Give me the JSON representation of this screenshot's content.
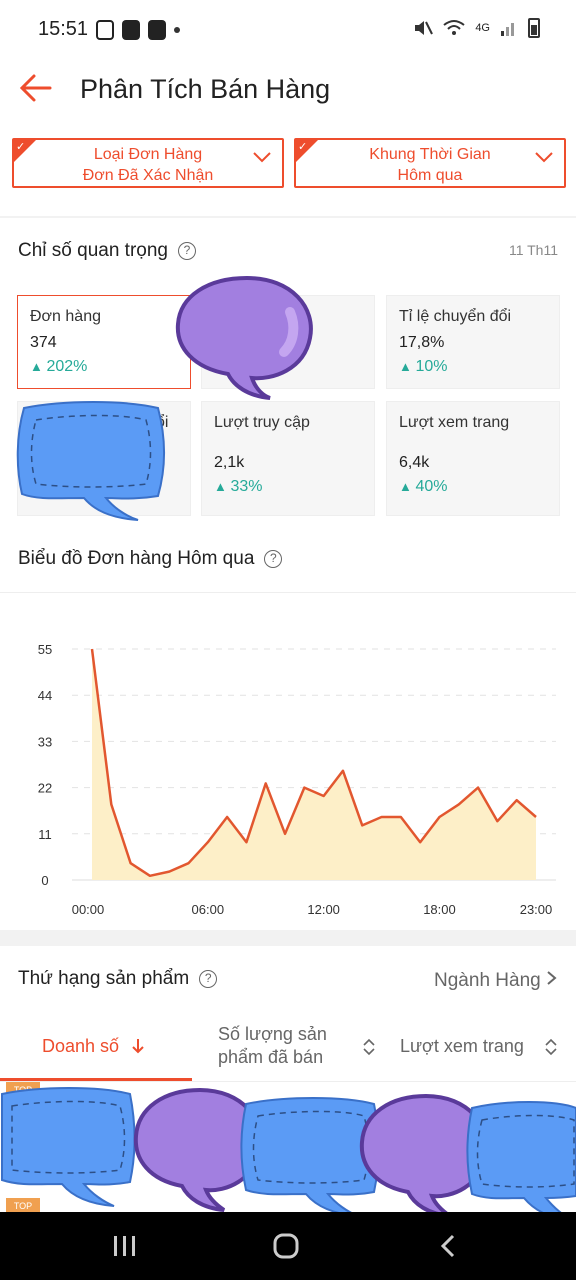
{
  "status_bar": {
    "time": "15:51",
    "network": "4G"
  },
  "header": {
    "title": "Phân Tích Bán Hàng"
  },
  "filters": [
    {
      "title": "Loại Đơn Hàng",
      "value": "Đơn Đã Xác Nhận"
    },
    {
      "title": "Khung Thời Gian",
      "value": "Hôm qua"
    }
  ],
  "key_metrics": {
    "title": "Chỉ số quan trọng",
    "date": "11 Th11",
    "items": [
      {
        "label": "Đơn hàng",
        "value": "374",
        "change": "202%"
      },
      {
        "label": "",
        "value": "",
        "change": ""
      },
      {
        "label": "Tỉ lệ chuyển đổi",
        "value": "17,8%",
        "change": "10%"
      },
      {
        "label": "ổi",
        "value": "",
        "change": ""
      },
      {
        "label": "Lượt truy cập",
        "value": "2,1k",
        "change": "33%"
      },
      {
        "label": "Lượt xem trang",
        "value": "6,4k",
        "change": "40%"
      }
    ]
  },
  "chart_section": {
    "title": "Biểu đồ Đơn hàng Hôm qua"
  },
  "chart_data": {
    "type": "area",
    "x": [
      0,
      1,
      2,
      3,
      4,
      5,
      6,
      7,
      8,
      9,
      10,
      11,
      12,
      13,
      14,
      15,
      16,
      17,
      18,
      19,
      20,
      21,
      22,
      23
    ],
    "y": [
      55,
      18,
      4,
      1,
      2,
      4,
      9,
      15,
      9,
      23,
      11,
      22,
      20,
      26,
      13,
      15,
      15,
      9,
      15,
      18,
      22,
      14,
      19,
      15
    ],
    "x_tick_labels": [
      "00:00",
      "06:00",
      "12:00",
      "18:00",
      "23:00"
    ],
    "x_tick_positions": [
      0,
      6,
      12,
      18,
      23
    ],
    "y_ticks": [
      0,
      11,
      22,
      33,
      44,
      55
    ],
    "ylim": [
      0,
      55
    ],
    "xlim": [
      0,
      23
    ],
    "line_color": "#e2572f",
    "fill_color": "#fdefc8",
    "grid": true
  },
  "products": {
    "title": "Thứ hạng sản phẩm",
    "link": "Ngành Hàng",
    "tabs": [
      {
        "label": "Doanh số"
      },
      {
        "label": "Số lượng sản phẩm đã bán"
      },
      {
        "label": "Lượt xem trang"
      }
    ],
    "badge": "TOP"
  },
  "colors": {
    "accent": "#ee4d2d",
    "positive": "#26aa99"
  }
}
